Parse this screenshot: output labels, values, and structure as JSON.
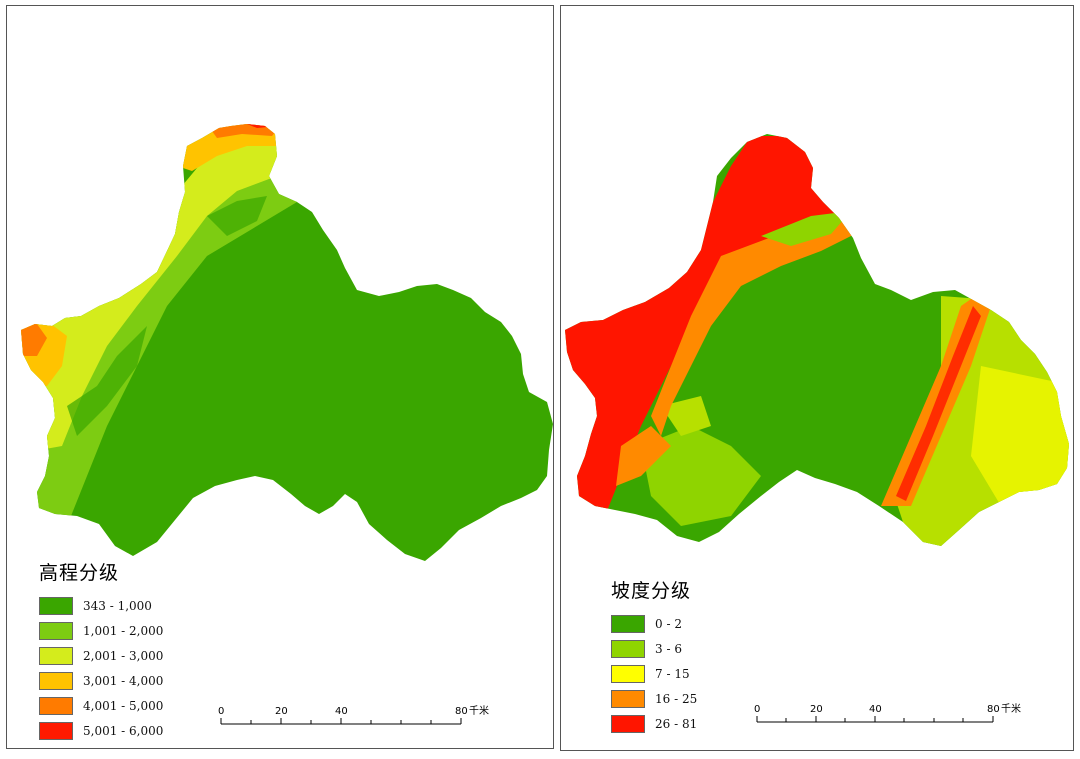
{
  "left_map": {
    "legend_title": "高程分级",
    "classes": [
      {
        "label": "343 - 1,000",
        "color": "#3aa600"
      },
      {
        "label": "1,001 - 2,000",
        "color": "#7dcc12"
      },
      {
        "label": "2,001 - 3,000",
        "color": "#d4ec1c"
      },
      {
        "label": "3,001 - 4,000",
        "color": "#ffc300"
      },
      {
        "label": "4,001 - 5,000",
        "color": "#ff7b00"
      },
      {
        "label": "5,001 - 6,000",
        "color": "#ff1a00"
      }
    ],
    "scale": {
      "ticks": [
        "0",
        "20",
        "40",
        "80"
      ],
      "unit": "千米"
    }
  },
  "right_map": {
    "legend_title": "坡度分级",
    "classes": [
      {
        "label": "0 - 2",
        "color": "#3aa600"
      },
      {
        "label": "3 - 6",
        "color": "#8fd400"
      },
      {
        "label": "7 - 15",
        "color": "#ffff00"
      },
      {
        "label": "16 - 25",
        "color": "#ff8a00"
      },
      {
        "label": "26 - 81",
        "color": "#ff1500"
      }
    ],
    "scale": {
      "ticks": [
        "0",
        "20",
        "40",
        "80"
      ],
      "unit": "千米"
    }
  }
}
